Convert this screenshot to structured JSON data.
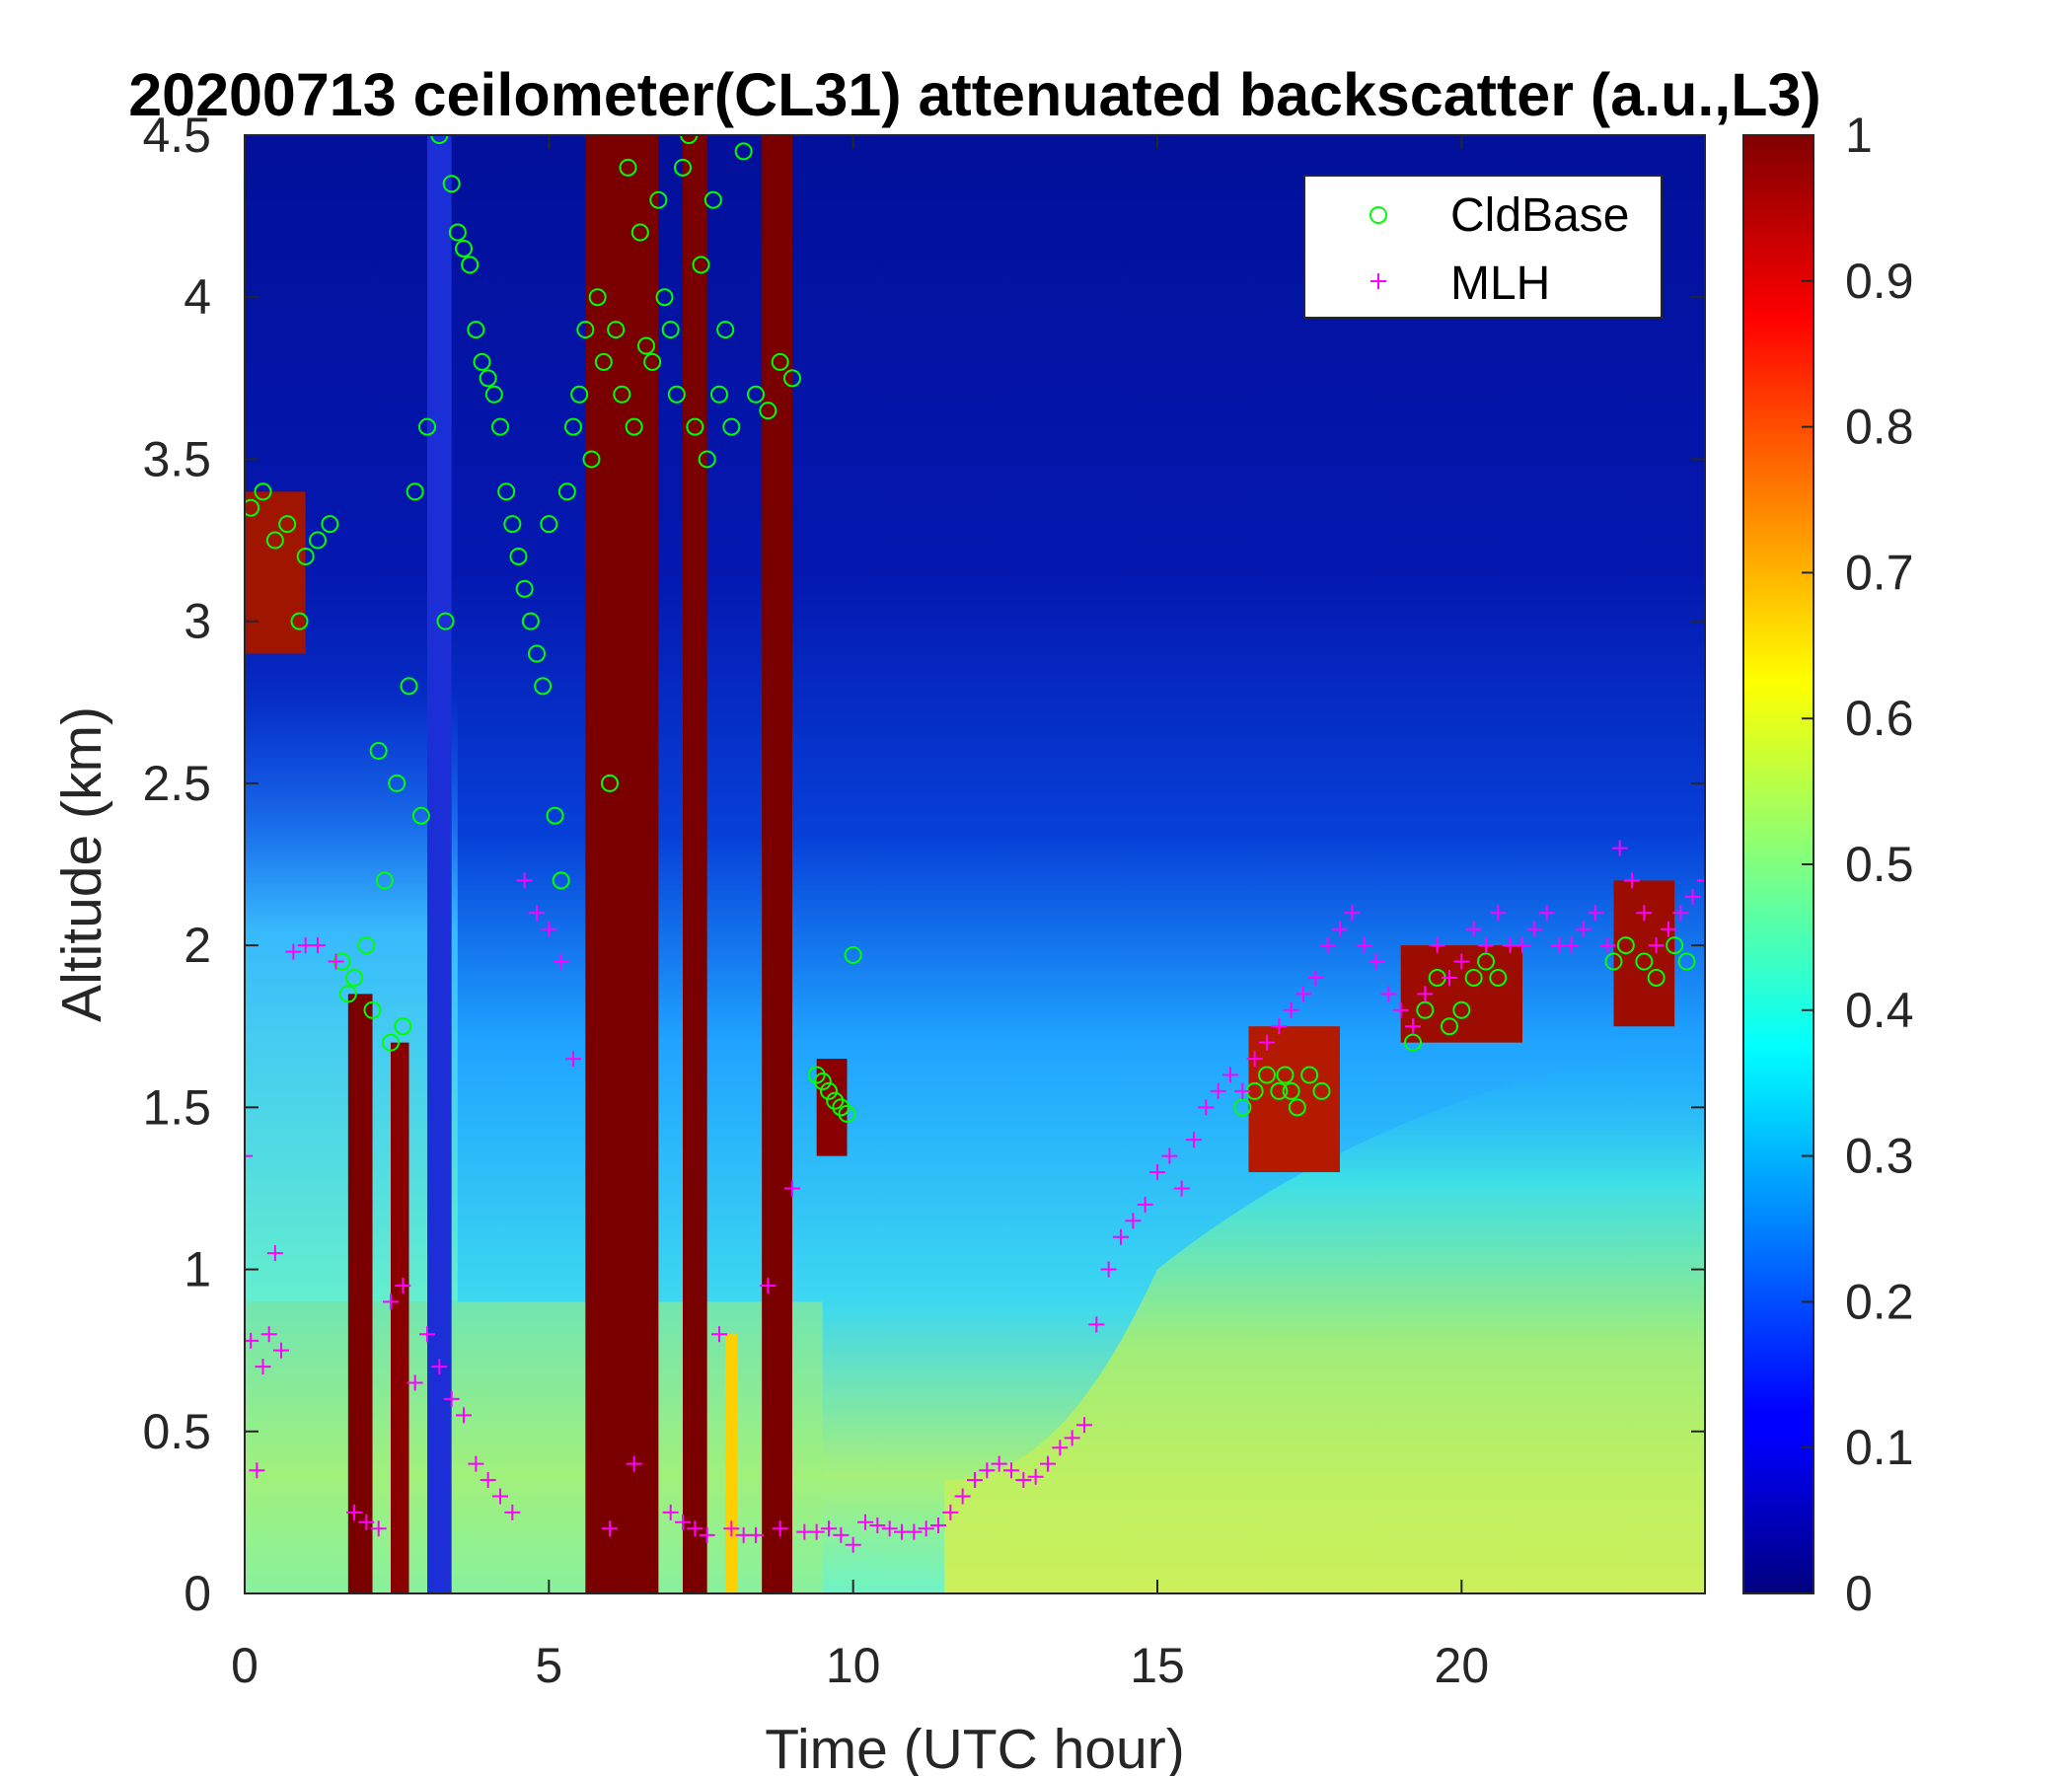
{
  "chart_data": {
    "type": "heatmap",
    "title": "20200713 ceilometer(CL31) attenuated backscatter (a.u.,L3)",
    "xlabel": "Time (UTC hour)",
    "ylabel": "Altitude (km)",
    "xlim": [
      0,
      24
    ],
    "ylim": [
      0,
      4.5
    ],
    "xticks": [
      "0",
      "5",
      "10",
      "15",
      "20"
    ],
    "yticks": [
      "0",
      "0.5",
      "1",
      "1.5",
      "2",
      "2.5",
      "3",
      "3.5",
      "4",
      "4.5"
    ],
    "colorbar": {
      "colormap": "jet",
      "range": [
        0,
        1
      ],
      "ticks": [
        "0",
        "0.1",
        "0.2",
        "0.3",
        "0.4",
        "0.5",
        "0.6",
        "0.7",
        "0.8",
        "0.9",
        "1"
      ]
    },
    "legend": {
      "placement": "top-right",
      "entries": [
        {
          "label": "CldBase",
          "marker": "circle",
          "color": "#00ff00"
        },
        {
          "label": "MLH",
          "marker": "plus",
          "color": "#ff00ff"
        }
      ]
    },
    "colors": {
      "cloud_base": "#00ff00",
      "mlh": "#ff00ff"
    },
    "series": [
      {
        "name": "CldBase",
        "marker": "circle",
        "x": [
          0.1,
          0.3,
          0.5,
          0.7,
          0.9,
          1.0,
          1.2,
          1.4,
          1.6,
          1.7,
          1.8,
          2.0,
          2.1,
          2.2,
          2.3,
          2.4,
          2.5,
          2.6,
          2.7,
          2.8,
          2.9,
          3.0,
          3.2,
          3.3,
          3.4,
          3.5,
          3.6,
          3.7,
          3.8,
          3.9,
          4.0,
          4.1,
          4.2,
          4.3,
          4.4,
          4.5,
          4.6,
          4.7,
          4.8,
          4.9,
          5.0,
          5.1,
          5.2,
          5.3,
          5.4,
          5.5,
          5.6,
          5.7,
          5.8,
          5.9,
          6.0,
          6.1,
          6.2,
          6.3,
          6.4,
          6.5,
          6.6,
          6.7,
          6.8,
          6.9,
          7.0,
          7.1,
          7.2,
          7.3,
          7.4,
          7.5,
          7.6,
          7.7,
          7.8,
          7.9,
          8.0,
          8.2,
          8.4,
          8.6,
          8.8,
          9.0,
          9.4,
          9.5,
          9.6,
          9.7,
          9.8,
          9.9,
          10.0,
          16.4,
          16.6,
          16.8,
          17.0,
          17.1,
          17.2,
          17.3,
          17.5,
          17.7,
          19.2,
          19.4,
          19.6,
          19.8,
          20.0,
          20.2,
          20.4,
          20.6,
          22.5,
          22.7,
          23.0,
          23.2,
          23.5,
          23.7
        ],
        "y": [
          3.35,
          3.4,
          3.25,
          3.3,
          3.0,
          3.2,
          3.25,
          3.3,
          1.95,
          1.85,
          1.9,
          2.0,
          1.8,
          2.6,
          2.2,
          1.7,
          2.5,
          1.75,
          2.8,
          3.4,
          2.4,
          3.6,
          4.5,
          3.0,
          4.35,
          4.2,
          4.15,
          4.1,
          3.9,
          3.8,
          3.75,
          3.7,
          3.6,
          3.4,
          3.3,
          3.2,
          3.1,
          3.0,
          2.9,
          2.8,
          3.3,
          2.4,
          2.2,
          3.4,
          3.6,
          3.7,
          3.9,
          3.5,
          4.0,
          3.8,
          2.5,
          3.9,
          3.7,
          4.4,
          3.6,
          4.2,
          3.85,
          3.8,
          4.3,
          4.0,
          3.9,
          3.7,
          4.4,
          4.5,
          3.6,
          4.1,
          3.5,
          4.3,
          3.7,
          3.9,
          3.6,
          4.45,
          3.7,
          3.65,
          3.8,
          3.75,
          1.6,
          1.58,
          1.55,
          1.52,
          1.5,
          1.48,
          1.97,
          1.5,
          1.55,
          1.6,
          1.55,
          1.6,
          1.55,
          1.5,
          1.6,
          1.55,
          1.7,
          1.8,
          1.9,
          1.75,
          1.8,
          1.9,
          1.95,
          1.9,
          1.95,
          2.0,
          1.95,
          1.9,
          2.0,
          1.95
        ]
      },
      {
        "name": "MLH",
        "marker": "plus",
        "x": [
          0.0,
          0.1,
          0.2,
          0.3,
          0.4,
          0.5,
          0.6,
          0.8,
          1.0,
          1.2,
          1.5,
          1.8,
          2.0,
          2.2,
          2.4,
          2.6,
          2.8,
          3.0,
          3.2,
          3.4,
          3.6,
          3.8,
          4.0,
          4.2,
          4.4,
          4.6,
          4.8,
          5.0,
          5.2,
          5.4,
          6.0,
          6.4,
          7.0,
          7.2,
          7.4,
          7.6,
          7.8,
          8.0,
          8.2,
          8.4,
          8.6,
          8.8,
          9.0,
          9.2,
          9.4,
          9.6,
          9.8,
          10.0,
          10.2,
          10.4,
          10.6,
          10.8,
          11.0,
          11.2,
          11.4,
          11.6,
          11.8,
          12.0,
          12.2,
          12.4,
          12.6,
          12.8,
          13.0,
          13.2,
          13.4,
          13.6,
          13.8,
          14.0,
          14.2,
          14.4,
          14.6,
          14.8,
          15.0,
          15.2,
          15.4,
          15.6,
          15.8,
          16.0,
          16.2,
          16.4,
          16.6,
          16.8,
          17.0,
          17.2,
          17.4,
          17.6,
          17.8,
          18.0,
          18.2,
          18.4,
          18.6,
          18.8,
          19.0,
          19.2,
          19.4,
          19.6,
          19.8,
          20.0,
          20.2,
          20.4,
          20.6,
          20.8,
          21.0,
          21.2,
          21.4,
          21.6,
          21.8,
          22.0,
          22.2,
          22.4,
          22.6,
          22.8,
          23.0,
          23.2,
          23.4,
          23.6,
          23.8,
          24.0
        ],
        "y": [
          1.35,
          0.78,
          0.38,
          0.7,
          0.8,
          1.05,
          0.75,
          1.98,
          2.0,
          2.0,
          1.95,
          0.25,
          0.22,
          0.2,
          0.9,
          0.95,
          0.65,
          0.8,
          0.7,
          0.6,
          0.55,
          0.4,
          0.35,
          0.3,
          0.25,
          2.2,
          2.1,
          2.05,
          1.95,
          1.65,
          0.2,
          0.4,
          0.25,
          0.22,
          0.2,
          0.18,
          0.8,
          0.2,
          0.18,
          0.18,
          0.95,
          0.2,
          1.25,
          0.19,
          0.19,
          0.2,
          0.18,
          0.15,
          0.22,
          0.21,
          0.2,
          0.19,
          0.19,
          0.2,
          0.21,
          0.25,
          0.3,
          0.35,
          0.38,
          0.4,
          0.38,
          0.35,
          0.36,
          0.4,
          0.45,
          0.48,
          0.52,
          0.83,
          1.0,
          1.1,
          1.15,
          1.2,
          1.3,
          1.35,
          1.25,
          1.4,
          1.5,
          1.55,
          1.6,
          1.55,
          1.65,
          1.7,
          1.75,
          1.8,
          1.85,
          1.9,
          2.0,
          2.05,
          2.1,
          2.0,
          1.95,
          1.85,
          1.8,
          1.75,
          1.85,
          2.0,
          1.9,
          1.95,
          2.05,
          2.0,
          2.1,
          2.0,
          2.0,
          2.05,
          2.1,
          2.0,
          2.0,
          2.05,
          2.1,
          2.0,
          2.3,
          2.2,
          2.1,
          2.0,
          2.05,
          2.1,
          2.15,
          2.2
        ]
      }
    ]
  }
}
